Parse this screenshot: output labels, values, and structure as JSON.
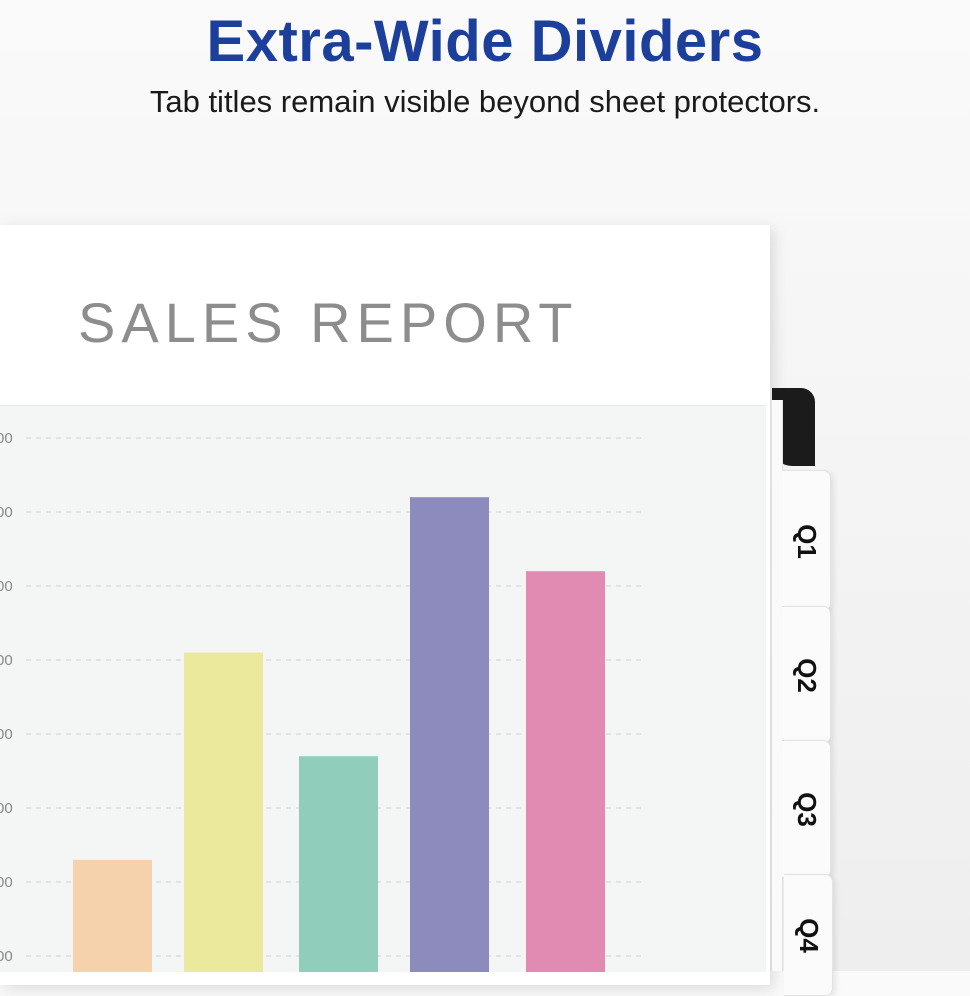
{
  "header": {
    "title": "Extra-Wide Dividers",
    "subtitle": "Tab titles remain visible beyond sheet protectors."
  },
  "document": {
    "title": "SALES REPORT"
  },
  "tabs": [
    "Q1",
    "Q2",
    "Q3",
    "Q4"
  ],
  "chart_data": {
    "type": "bar",
    "ytick_labels": [
      "00",
      "00",
      "00",
      "00",
      "00",
      "00",
      "00",
      "00"
    ],
    "ylim": [
      0,
      8.6
    ],
    "values": [
      2.3,
      5.1,
      3.7,
      7.2,
      6.2
    ],
    "colors": [
      "#f5d2ab",
      "#ebe99b",
      "#90cebb",
      "#8d8bbd",
      "#e18bb3"
    ],
    "grid": true
  }
}
